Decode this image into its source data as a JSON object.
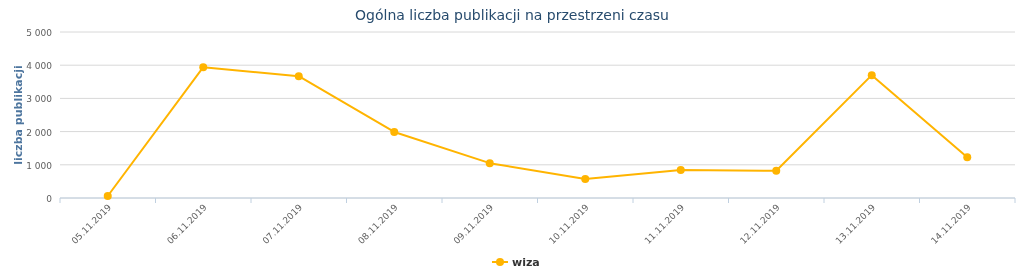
{
  "chart_data": {
    "type": "line",
    "title": "Ogólna liczba publikacji na przestrzeni czasu",
    "ylabel": "liczba publikacji",
    "categories": [
      "05.11.2019",
      "06.11.2019",
      "07.11.2019",
      "08.11.2019",
      "09.11.2019",
      "10.11.2019",
      "11.11.2019",
      "12.11.2019",
      "13.11.2019",
      "14.11.2019"
    ],
    "series": [
      {
        "name": "wiza",
        "color": "#ffb400",
        "values": [
          60,
          3940,
          3670,
          1990,
          1050,
          570,
          840,
          820,
          3700,
          1230
        ]
      }
    ],
    "ylim": [
      0,
      5000
    ],
    "yticks": [
      0,
      {
        "value": 1000,
        "label": "1 000"
      },
      {
        "value": 2000,
        "label": "2 000"
      },
      {
        "value": 3000,
        "label": "3 000"
      },
      {
        "value": 4000,
        "label": "4 000"
      },
      {
        "value": 5000,
        "label": "5 000"
      }
    ],
    "grid": "y",
    "legend": "bottom",
    "marker": "circle",
    "line_style": "solid"
  }
}
